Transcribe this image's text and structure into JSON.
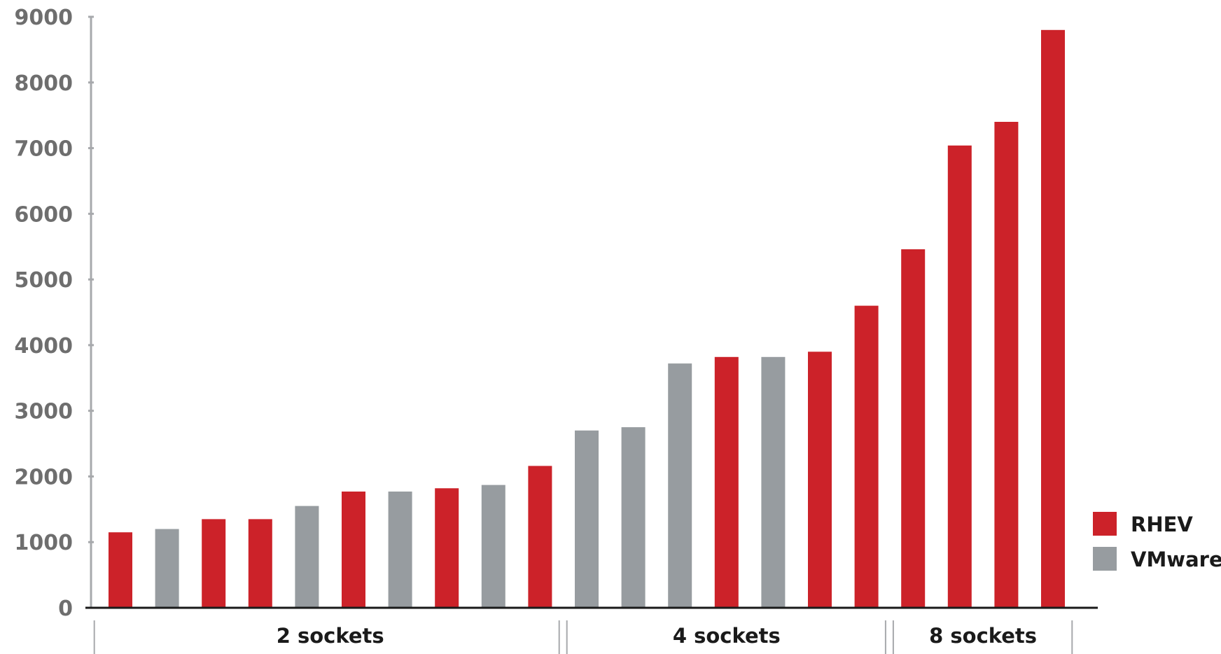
{
  "chart_data": {
    "type": "bar",
    "title": "",
    "xlabel": "",
    "ylabel": "",
    "ylim": [
      0,
      9000
    ],
    "yticks": [
      0,
      1000,
      2000,
      3000,
      4000,
      5000,
      6000,
      7000,
      8000,
      9000
    ],
    "grid": false,
    "legend_position": "bottom-right",
    "colors": {
      "RHEV": "#cc2229",
      "VMware": "#979ca0"
    },
    "legend": [
      {
        "name": "RHEV",
        "color": "#cc2229"
      },
      {
        "name": "VMware",
        "color": "#979ca0"
      }
    ],
    "bars": [
      {
        "series": "RHEV",
        "value": 1150
      },
      {
        "series": "VMware",
        "value": 1200
      },
      {
        "series": "RHEV",
        "value": 1350
      },
      {
        "series": "RHEV",
        "value": 1350
      },
      {
        "series": "VMware",
        "value": 1550
      },
      {
        "series": "RHEV",
        "value": 1770
      },
      {
        "series": "VMware",
        "value": 1770
      },
      {
        "series": "RHEV",
        "value": 1820
      },
      {
        "series": "VMware",
        "value": 1870
      },
      {
        "series": "RHEV",
        "value": 2160
      },
      {
        "series": "VMware",
        "value": 2700
      },
      {
        "series": "VMware",
        "value": 2750
      },
      {
        "series": "VMware",
        "value": 3720
      },
      {
        "series": "RHEV",
        "value": 3820
      },
      {
        "series": "VMware",
        "value": 3820
      },
      {
        "series": "RHEV",
        "value": 3900
      },
      {
        "series": "RHEV",
        "value": 4600
      },
      {
        "series": "RHEV",
        "value": 5460
      },
      {
        "series": "RHEV",
        "value": 7040
      },
      {
        "series": "RHEV",
        "value": 7400
      },
      {
        "series": "RHEV",
        "value": 8800
      }
    ],
    "groups": [
      {
        "label": "2 sockets",
        "bars": 10
      },
      {
        "label": "4 sockets",
        "bars": 7
      },
      {
        "label": "8 sockets",
        "bars": 4
      }
    ]
  }
}
